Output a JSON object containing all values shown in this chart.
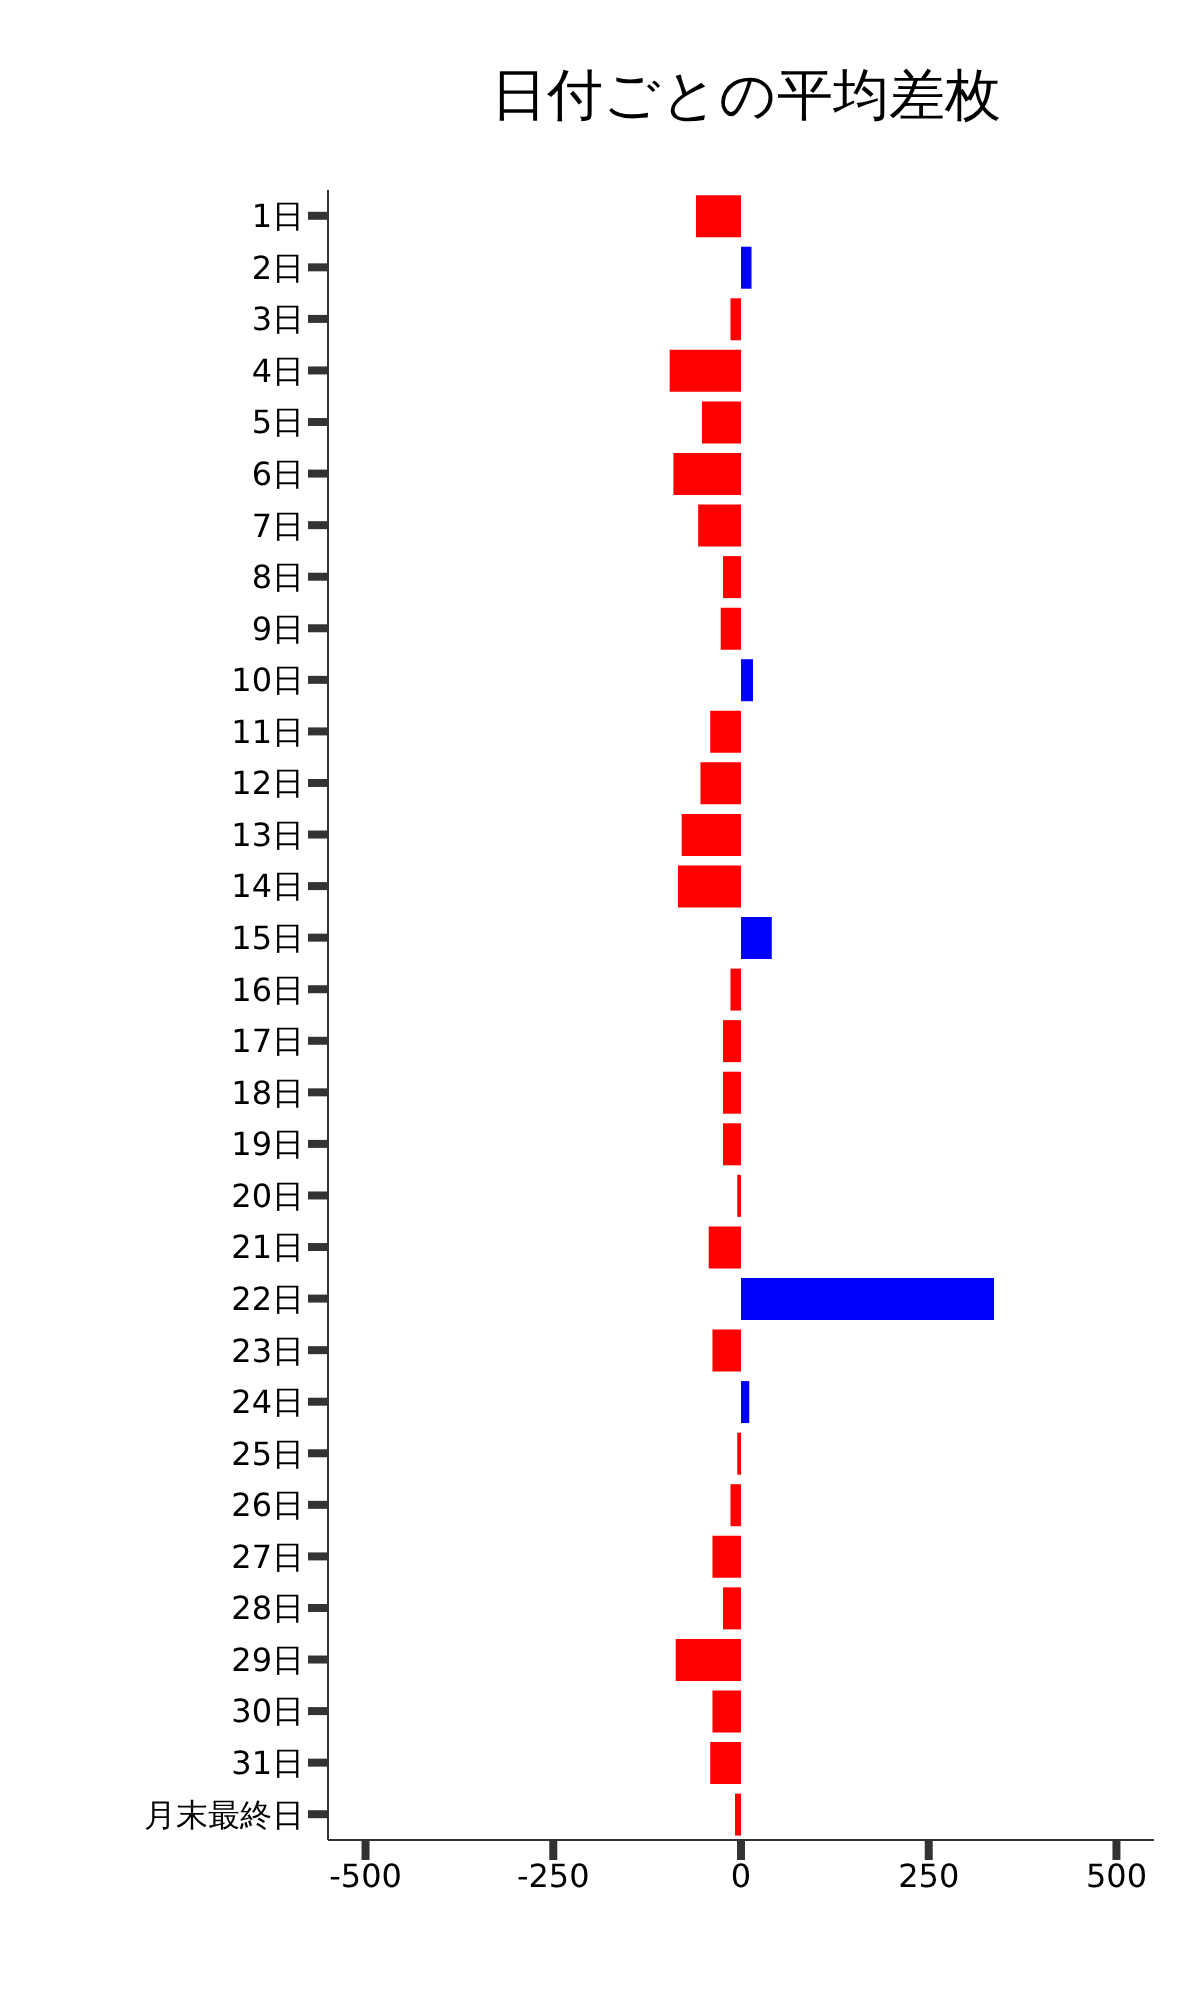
{
  "chart_data": {
    "type": "bar",
    "orientation": "horizontal",
    "title": "日付ごとの平均差枚",
    "categories": [
      "1日",
      "2日",
      "3日",
      "4日",
      "5日",
      "6日",
      "7日",
      "8日",
      "9日",
      "10日",
      "11日",
      "12日",
      "13日",
      "14日",
      "15日",
      "16日",
      "17日",
      "18日",
      "19日",
      "20日",
      "21日",
      "22日",
      "23日",
      "24日",
      "25日",
      "26日",
      "27日",
      "28日",
      "29日",
      "30日",
      "31日",
      "月末最終日"
    ],
    "values": [
      -60,
      14,
      -14,
      -95,
      -52,
      -90,
      -57,
      -24,
      -27,
      16,
      -41,
      -54,
      -79,
      -84,
      41,
      -14,
      -24,
      -24,
      -24,
      -5,
      -43,
      337,
      -38,
      11,
      -5,
      -14,
      -38,
      -24,
      -87,
      -38,
      -41,
      -8
    ],
    "colors": [
      "#ff0000",
      "#0000ff",
      "#ff0000",
      "#ff0000",
      "#ff0000",
      "#ff0000",
      "#ff0000",
      "#ff0000",
      "#ff0000",
      "#0000ff",
      "#ff0000",
      "#ff0000",
      "#ff0000",
      "#ff0000",
      "#0000ff",
      "#ff0000",
      "#ff0000",
      "#ff0000",
      "#ff0000",
      "#ff0000",
      "#ff0000",
      "#0000ff",
      "#ff0000",
      "#0000ff",
      "#ff0000",
      "#ff0000",
      "#ff0000",
      "#ff0000",
      "#ff0000",
      "#ff0000",
      "#ff0000",
      "#ff0000"
    ],
    "xlim": [
      -550,
      550
    ],
    "xticks": [
      -500,
      -250,
      0,
      250,
      500
    ],
    "grid": false,
    "legend": false
  }
}
